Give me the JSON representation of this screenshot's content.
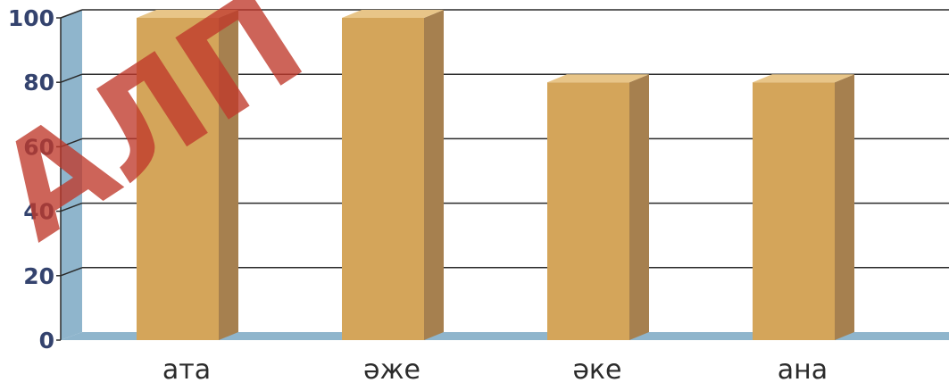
{
  "chart_data": {
    "type": "bar",
    "title": "",
    "xlabel": "",
    "ylabel": "",
    "categories": [
      "ата",
      "әже",
      "әке",
      "ана"
    ],
    "values": [
      100,
      100,
      80,
      80
    ],
    "ylim": [
      0,
      100
    ],
    "yticks": [
      0,
      20,
      40,
      60,
      80,
      100
    ],
    "grid": true,
    "legend": "none",
    "style": "3d",
    "colors": {
      "bar_front": "#d4a55a",
      "bar_side": "#a6804f",
      "bar_top": "#e8c588",
      "axis_wall": "#8fb5cc",
      "grid": "#2a2a2a",
      "tick_text": "#34436e",
      "category_text": "#2b2b2b"
    }
  },
  "watermark": {
    "text": "АЛП",
    "color": "#c0392b"
  }
}
